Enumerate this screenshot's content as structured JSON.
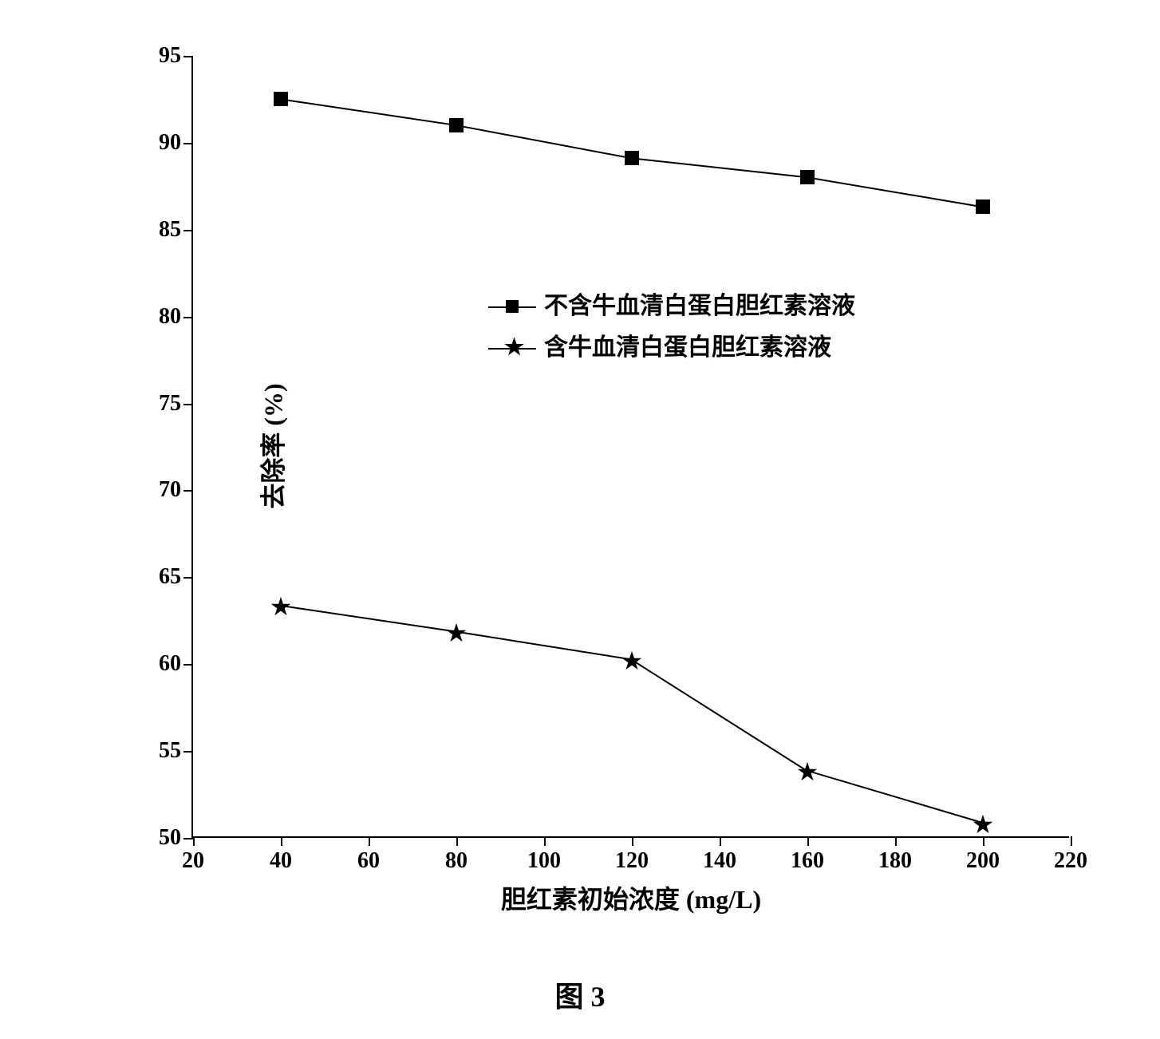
{
  "chart": {
    "type": "line",
    "xlabel": "胆红素初始浓度 (mg/L)",
    "ylabel": "去除率 (%)",
    "label_fontsize": 32,
    "tick_fontsize": 28,
    "xlim": [
      20,
      220
    ],
    "ylim": [
      50,
      95
    ],
    "xtick_step": 20,
    "ytick_step": 5,
    "xticks": [
      20,
      40,
      60,
      80,
      100,
      120,
      140,
      160,
      180,
      200,
      220
    ],
    "yticks": [
      50,
      55,
      60,
      65,
      70,
      75,
      80,
      85,
      90,
      95
    ],
    "background_color": "#ffffff",
    "axis_color": "#000000",
    "line_color": "#000000",
    "line_width": 2,
    "marker_size": 18,
    "series": [
      {
        "name": "series_without_bsa",
        "label": "不含牛血清白蛋白胆红素溶液",
        "marker": "square",
        "marker_color": "#000000",
        "x": [
          40,
          80,
          120,
          160,
          200
        ],
        "y": [
          92.5,
          91.0,
          89.1,
          88.0,
          86.3
        ]
      },
      {
        "name": "series_with_bsa",
        "label": "含牛血清白蛋白胆红素溶液",
        "marker": "star",
        "marker_color": "#000000",
        "x": [
          40,
          80,
          120,
          160,
          200
        ],
        "y": [
          63.3,
          61.8,
          60.2,
          53.8,
          50.8
        ]
      }
    ],
    "legend_position": "upper-center",
    "figure_caption": "图 3"
  }
}
